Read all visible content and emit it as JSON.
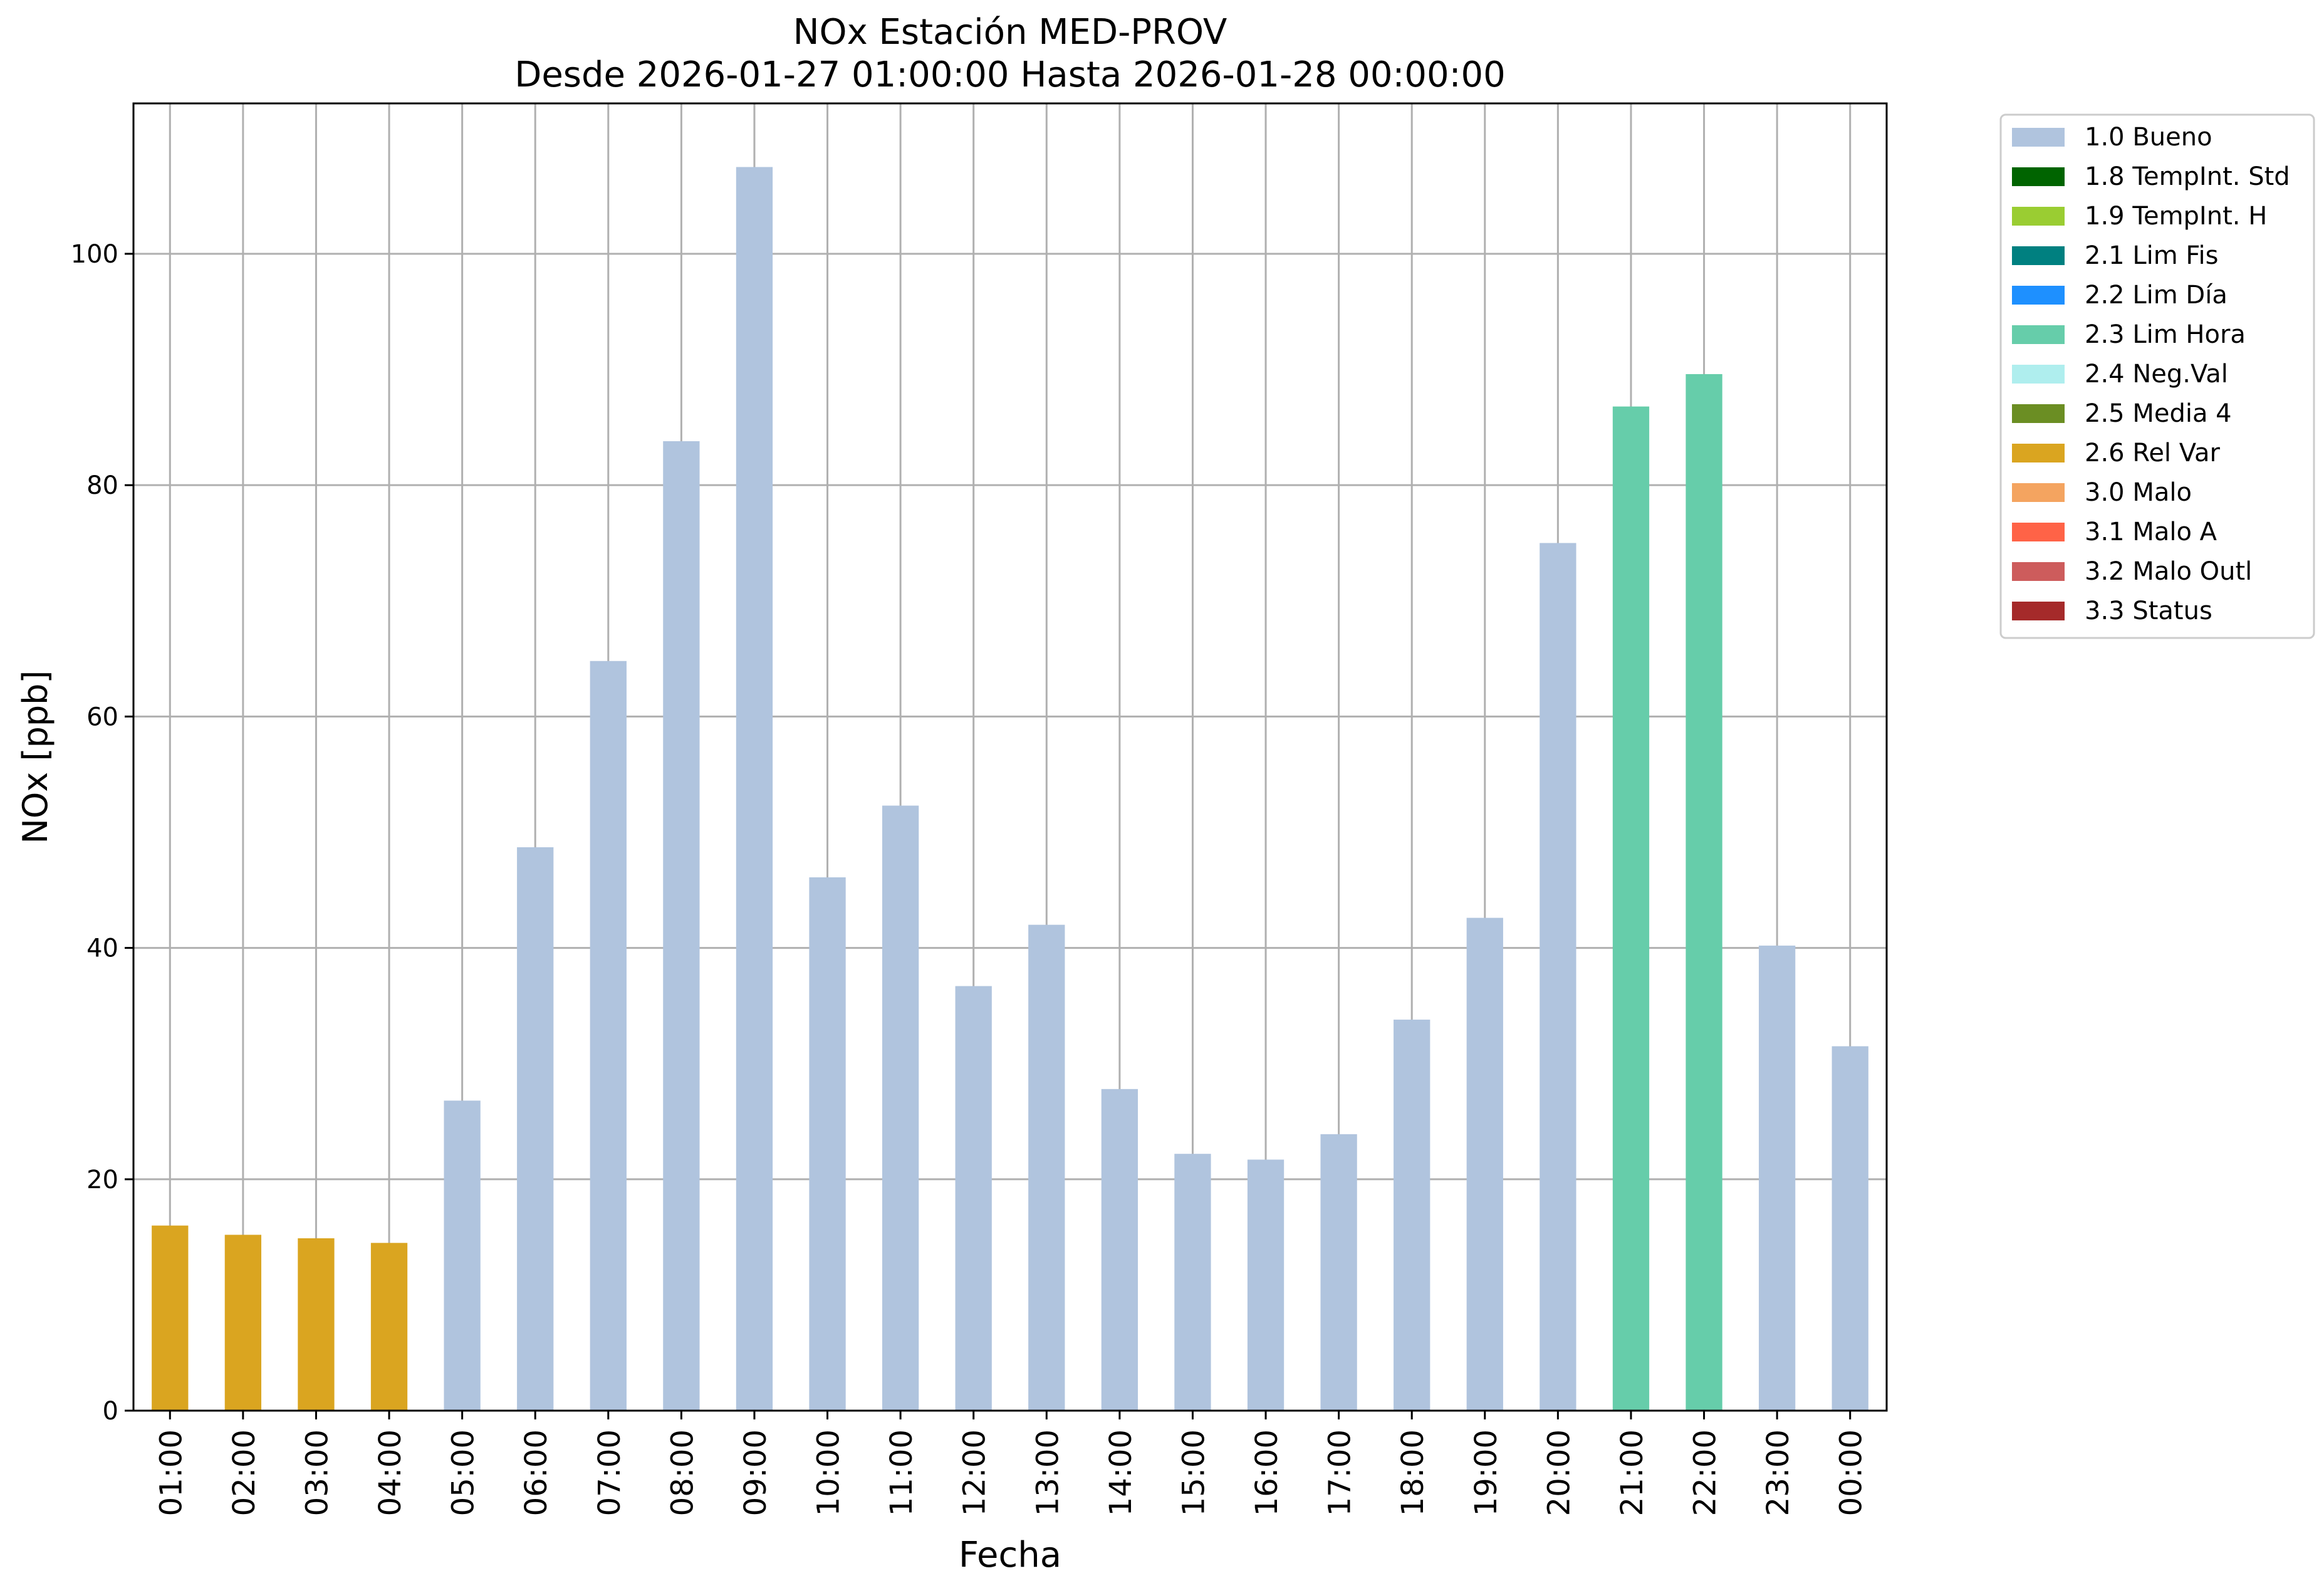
{
  "chart_data": {
    "type": "bar",
    "title": "NOx Estación MED-PROV",
    "subtitle": "Desde 2026-01-27 01:00:00 Hasta 2026-01-28 00:00:00",
    "xlabel": "Fecha",
    "ylabel": "NOx [ppb]",
    "ylim": [
      0,
      113
    ],
    "yticks": [
      "0",
      "20",
      "40",
      "60",
      "80",
      "100"
    ],
    "grid": true,
    "legend_position": "outside-top-right",
    "categories": [
      "01:00",
      "02:00",
      "03:00",
      "04:00",
      "05:00",
      "06:00",
      "07:00",
      "08:00",
      "09:00",
      "10:00",
      "11:00",
      "12:00",
      "13:00",
      "14:00",
      "15:00",
      "16:00",
      "17:00",
      "18:00",
      "19:00",
      "20:00",
      "21:00",
      "22:00",
      "23:00",
      "00:00"
    ],
    "values": [
      16.0,
      15.2,
      14.9,
      14.5,
      26.8,
      48.7,
      64.8,
      83.8,
      107.5,
      46.1,
      52.3,
      36.7,
      42.0,
      27.8,
      22.2,
      21.7,
      23.9,
      33.8,
      42.6,
      75.0,
      86.8,
      89.6,
      40.2,
      31.5
    ],
    "flags": [
      "2.6 Rel Var",
      "2.6 Rel Var",
      "2.6 Rel Var",
      "2.6 Rel Var",
      "1.0 Bueno",
      "1.0 Bueno",
      "1.0 Bueno",
      "1.0 Bueno",
      "1.0 Bueno",
      "1.0 Bueno",
      "1.0 Bueno",
      "1.0 Bueno",
      "1.0 Bueno",
      "1.0 Bueno",
      "1.0 Bueno",
      "1.0 Bueno",
      "1.0 Bueno",
      "1.0 Bueno",
      "1.0 Bueno",
      "1.0 Bueno",
      "2.3 Lim Hora",
      "2.3 Lim Hora",
      "1.0 Bueno",
      "1.0 Bueno"
    ],
    "legend": [
      {
        "label": "1.0 Bueno",
        "color": "#b0c4de"
      },
      {
        "label": "1.8 TempInt. Std",
        "color": "#006400"
      },
      {
        "label": "1.9 TempInt. H",
        "color": "#9acd32"
      },
      {
        "label": "2.1 Lim Fis",
        "color": "#008080"
      },
      {
        "label": "2.2 Lim Día",
        "color": "#1e90ff"
      },
      {
        "label": "2.3 Lim Hora",
        "color": "#66cdaa"
      },
      {
        "label": "2.4 Neg.Val",
        "color": "#afeeee"
      },
      {
        "label": "2.5 Media 4",
        "color": "#6b8e23"
      },
      {
        "label": "2.6 Rel Var",
        "color": "#daa520"
      },
      {
        "label": "3.0 Malo",
        "color": "#f4a460"
      },
      {
        "label": "3.1 Malo A",
        "color": "#ff6347"
      },
      {
        "label": "3.2 Malo Outl",
        "color": "#cd5c5c"
      },
      {
        "label": "3.3 Status",
        "color": "#a52a2a"
      }
    ]
  }
}
